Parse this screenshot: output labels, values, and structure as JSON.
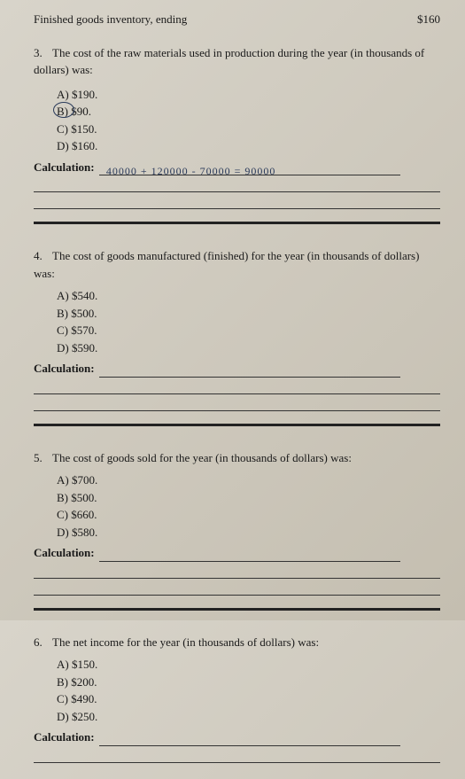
{
  "header": {
    "left": "Finished goods inventory, ending",
    "right": "$160"
  },
  "questions": [
    {
      "num": "3.",
      "text": "The cost of the raw materials used in production during the year (in thousands of dollars) was:",
      "options": [
        {
          "letter": "A)",
          "value": "$190.",
          "circled": false
        },
        {
          "letter": "B)",
          "value": "$90.",
          "circled": true
        },
        {
          "letter": "C)",
          "value": "$150.",
          "circled": false
        },
        {
          "letter": "D)",
          "value": "$160.",
          "circled": false
        }
      ],
      "calc_handwriting": "40000 + 120000 - 70000 = 90000"
    },
    {
      "num": "4.",
      "text": "The cost of goods manufactured (finished) for the year (in thousands of dollars) was:",
      "options": [
        {
          "letter": "A)",
          "value": "$540.",
          "circled": false
        },
        {
          "letter": "B)",
          "value": "$500.",
          "circled": false
        },
        {
          "letter": "C)",
          "value": "$570.",
          "circled": false
        },
        {
          "letter": "D)",
          "value": "$590.",
          "circled": false
        }
      ],
      "calc_handwriting": ""
    },
    {
      "num": "5.",
      "text": "The cost of goods sold for the year (in thousands of dollars) was:",
      "options": [
        {
          "letter": "A)",
          "value": "$700.",
          "circled": false
        },
        {
          "letter": "B)",
          "value": "$500.",
          "circled": false
        },
        {
          "letter": "C)",
          "value": "$660.",
          "circled": false
        },
        {
          "letter": "D)",
          "value": "$580.",
          "circled": false
        }
      ],
      "calc_handwriting": ""
    },
    {
      "num": "6.",
      "text": "The net income for the year (in thousands of dollars) was:",
      "options": [
        {
          "letter": "A)",
          "value": "$150.",
          "circled": false
        },
        {
          "letter": "B)",
          "value": "$200.",
          "circled": false
        },
        {
          "letter": "C)",
          "value": "$490.",
          "circled": false
        },
        {
          "letter": "D)",
          "value": "$250.",
          "circled": false
        }
      ],
      "calc_handwriting": ""
    }
  ],
  "labels": {
    "calculation": "Calculation:"
  }
}
